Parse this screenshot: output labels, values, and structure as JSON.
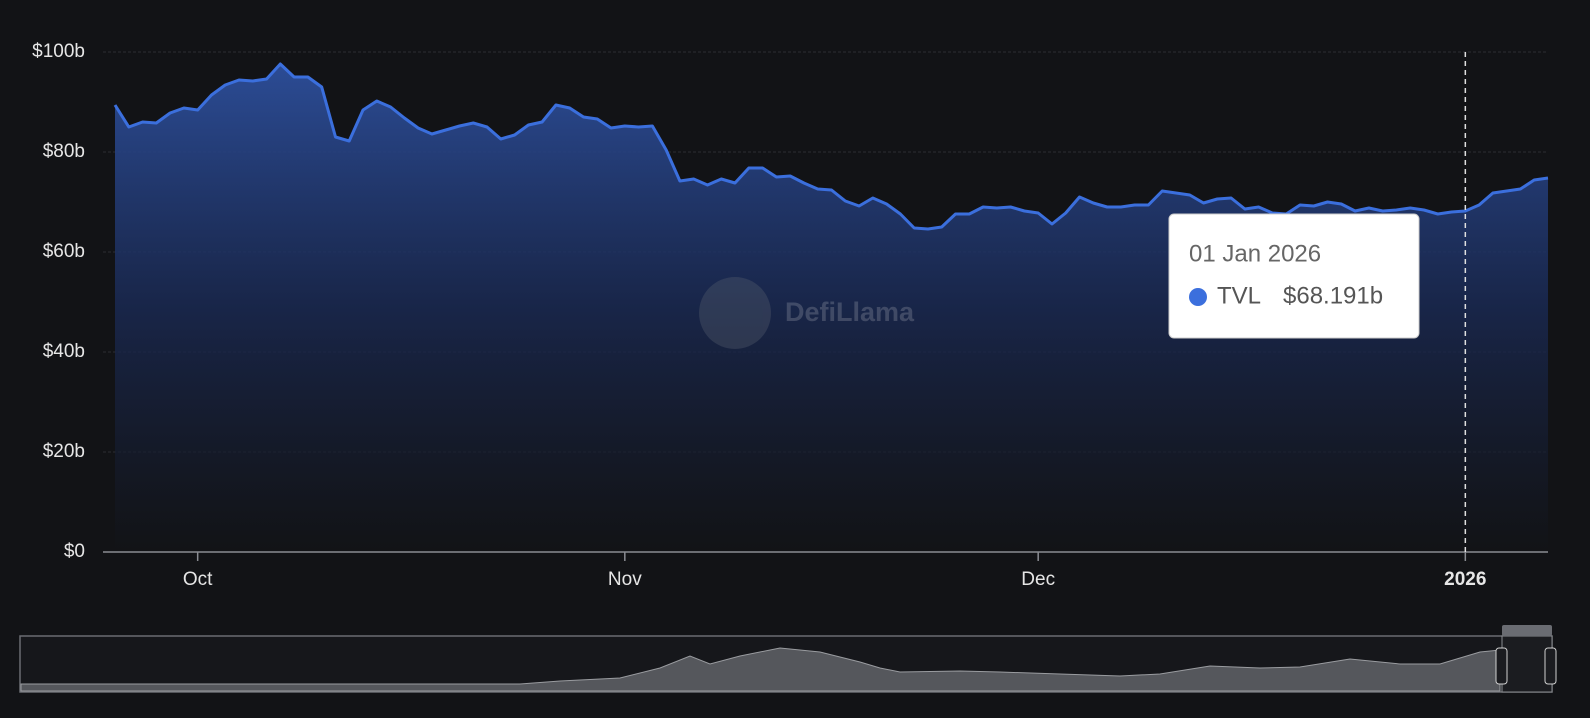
{
  "chart_data": {
    "type": "area",
    "watermark": "DefiLlama",
    "categories": [
      null,
      null,
      null,
      null,
      null,
      null,
      "Oct",
      null,
      null,
      null,
      null,
      null,
      null,
      null,
      null,
      null,
      null,
      null,
      null,
      null,
      null,
      null,
      null,
      null,
      null,
      null,
      null,
      null,
      null,
      null,
      null,
      null,
      null,
      null,
      null,
      null,
      null,
      "Nov",
      null,
      null,
      null,
      null,
      null,
      null,
      null,
      null,
      null,
      null,
      null,
      null,
      null,
      null,
      null,
      null,
      null,
      null,
      null,
      null,
      null,
      null,
      null,
      null,
      null,
      null,
      null,
      null,
      null,
      "Dec",
      null,
      null,
      null,
      null,
      null,
      null,
      null,
      null,
      null,
      null,
      null,
      null,
      null,
      null,
      null,
      null,
      null,
      null,
      null,
      null,
      null,
      null,
      null,
      null,
      null,
      null,
      null,
      null,
      null,
      null,
      "2026",
      null,
      null,
      null,
      null,
      null,
      null
    ],
    "series": [
      {
        "name": "TVL",
        "color": "#3b6fdd",
        "values": [
          89.4,
          85,
          86,
          85.8,
          87.8,
          88.8,
          88.4,
          91.4,
          93.4,
          94.4,
          94.2,
          94.6,
          97.6,
          95,
          95,
          93,
          83,
          82.2,
          88.4,
          90.2,
          89,
          86.8,
          84.8,
          83.6,
          84.4,
          85.2,
          85.8,
          85,
          82.6,
          83.4,
          85.4,
          86,
          89.4,
          88.8,
          87,
          86.6,
          84.8,
          85.2,
          85,
          85.2,
          80.4,
          74.2,
          74.6,
          73.4,
          74.6,
          73.8,
          76.8,
          76.8,
          75,
          75.2,
          73.8,
          72.6,
          72.4,
          70.2,
          69.2,
          70.8,
          69.6,
          67.6,
          64.8,
          64.6,
          65,
          67.6,
          67.6,
          69,
          68.8,
          69,
          68.2,
          67.8,
          65.6,
          67.8,
          71,
          69.8,
          69,
          69,
          69.4,
          69.4,
          72.2,
          71.8,
          71.4,
          69.8,
          70.6,
          70.8,
          68.6,
          69,
          67.8,
          67.6,
          69.4,
          69.2,
          70,
          69.6,
          68.2,
          68.8,
          68.2,
          68.4,
          68.8,
          68.4,
          67.6,
          68,
          68.191,
          69.4,
          71.8,
          72.2,
          72.6,
          74.4,
          74.8
        ]
      }
    ],
    "ylim": [
      0,
      100
    ],
    "yticks": [
      {
        "value": 0,
        "label": "$0"
      },
      {
        "value": 20,
        "label": "$20b"
      },
      {
        "value": 40,
        "label": "$40b"
      },
      {
        "value": 60,
        "label": "$60b"
      },
      {
        "value": 80,
        "label": "$80b"
      },
      {
        "value": 100,
        "label": "$100b"
      }
    ],
    "grid": true,
    "tooltip": {
      "title": "01 Jan 2026",
      "value_label": "$68.191b"
    }
  }
}
